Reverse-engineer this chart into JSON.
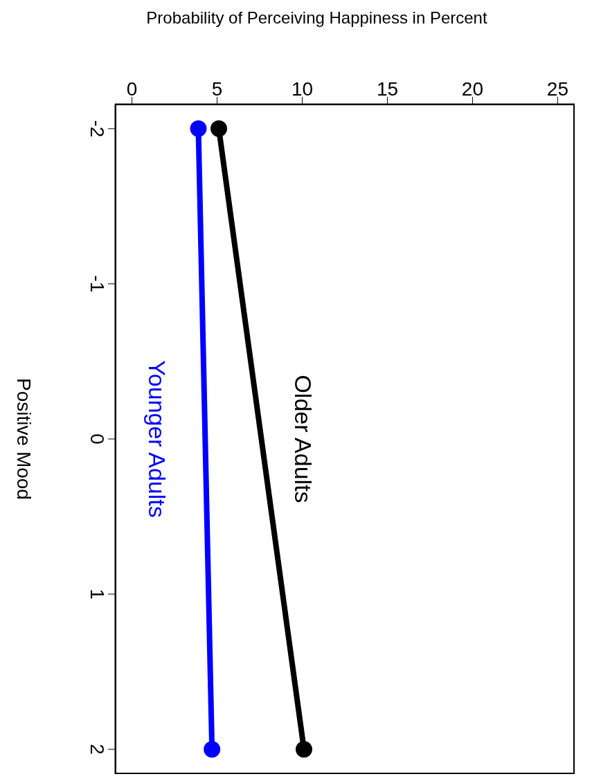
{
  "chart_data": {
    "type": "line",
    "orientation": "horizontal",
    "xlabel": "Probability of Perceiving Happiness in Percent",
    "ylabel": "Positive Mood",
    "x": [
      -2,
      2
    ],
    "xlim": [
      -1,
      26
    ],
    "xticks": [
      0,
      5,
      10,
      15,
      20,
      25
    ],
    "ylim": [
      2.16,
      -2.16
    ],
    "yticks": [
      -2,
      -1,
      0,
      1,
      2
    ],
    "marker": "circle",
    "line_style": "solid",
    "series": [
      {
        "name": "Older Adults",
        "color": "#000000",
        "values": [
          5.1,
          10.1
        ]
      },
      {
        "name": "Younger Adults",
        "color": "#0000ff",
        "values": [
          3.9,
          4.7
        ]
      }
    ]
  }
}
